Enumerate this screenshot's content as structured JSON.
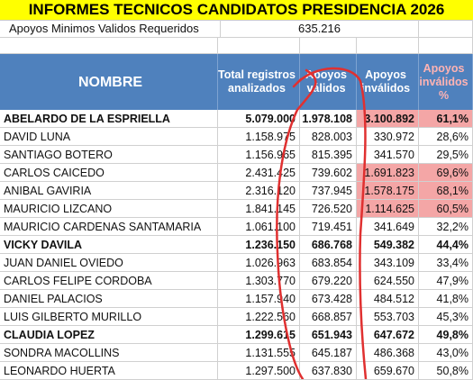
{
  "title": "INFORMES TECNICOS CANDIDATOS PRESIDENCIA 2026",
  "apoyos_minimos": {
    "label": "Apoyos Minimos Validos Requeridos",
    "value": "635.216"
  },
  "headers": {
    "nombre": "NOMBRE",
    "total": "Total registros analizados",
    "validos": "Apoyos válidos",
    "invalidos": "Apoyos inválidos",
    "pct": "Apoyos inválidos %"
  },
  "rows": [
    {
      "name": "ABELARDO DE LA ESPRIELLA",
      "total": "5.079.000",
      "valid": "1.978.108",
      "invalid": "3.100.892",
      "pct": "61,1%",
      "bold": true,
      "highlight": true
    },
    {
      "name": "DAVID LUNA",
      "total": "1.158.975",
      "valid": "828.003",
      "invalid": "330.972",
      "pct": "28,6%",
      "bold": false,
      "highlight": false
    },
    {
      "name": "SANTIAGO BOTERO",
      "total": "1.156.965",
      "valid": "815.395",
      "invalid": "341.570",
      "pct": "29,5%",
      "bold": false,
      "highlight": false
    },
    {
      "name": "CARLOS CAICEDO",
      "total": "2.431.425",
      "valid": "739.602",
      "invalid": "1.691.823",
      "pct": "69,6%",
      "bold": false,
      "highlight": true
    },
    {
      "name": "ANIBAL GAVIRIA",
      "total": "2.316.120",
      "valid": "737.945",
      "invalid": "1.578.175",
      "pct": "68,1%",
      "bold": false,
      "highlight": true
    },
    {
      "name": "MAURICIO LIZCANO",
      "total": "1.841.145",
      "valid": "726.520",
      "invalid": "1.114.625",
      "pct": "60,5%",
      "bold": false,
      "highlight": true
    },
    {
      "name": "MAURICIO CARDENAS SANTAMARIA",
      "total": "1.061.100",
      "valid": "719.451",
      "invalid": "341.649",
      "pct": "32,2%",
      "bold": false,
      "highlight": false
    },
    {
      "name": "VICKY DAVILA",
      "total": "1.236.150",
      "valid": "686.768",
      "invalid": "549.382",
      "pct": "44,4%",
      "bold": true,
      "highlight": false
    },
    {
      "name": "JUAN DANIEL OVIEDO",
      "total": "1.026.963",
      "valid": "683.854",
      "invalid": "343.109",
      "pct": "33,4%",
      "bold": false,
      "highlight": false
    },
    {
      "name": "CARLOS FELIPE CORDOBA",
      "total": "1.303.770",
      "valid": "679.220",
      "invalid": "624.550",
      "pct": "47,9%",
      "bold": false,
      "highlight": false
    },
    {
      "name": "DANIEL PALACIOS",
      "total": "1.157.940",
      "valid": "673.428",
      "invalid": "484.512",
      "pct": "41,8%",
      "bold": false,
      "highlight": false
    },
    {
      "name": "LUIS GILBERTO MURILLO",
      "total": "1.222.560",
      "valid": "668.857",
      "invalid": "553.703",
      "pct": "45,3%",
      "bold": false,
      "highlight": false
    },
    {
      "name": "CLAUDIA LOPEZ",
      "total": "1.299.615",
      "valid": "651.943",
      "invalid": "647.672",
      "pct": "49,8%",
      "bold": true,
      "highlight": false
    },
    {
      "name": "SONDRA MACOLLINS",
      "total": "1.131.555",
      "valid": "645.187",
      "invalid": "486.368",
      "pct": "43,0%",
      "bold": false,
      "highlight": false
    },
    {
      "name": "LEONARDO HUERTA",
      "total": "1.297.500",
      "valid": "637.830",
      "invalid": "659.670",
      "pct": "50,8%",
      "bold": false,
      "highlight": false
    }
  ],
  "colors": {
    "title_bg": "#ffff00",
    "header_bg": "#4f81bd",
    "highlight": "#f4a6a6",
    "annotation": "#e03030"
  }
}
